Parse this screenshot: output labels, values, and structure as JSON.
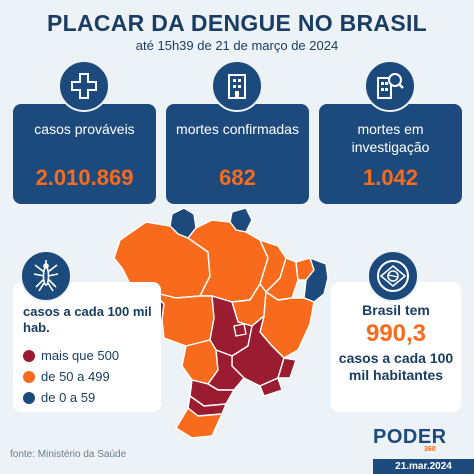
{
  "header": {
    "title": "PLACAR DA DENGUE NO BRASIL",
    "subtitle": "até 15h39 de 21 de março de 2024"
  },
  "cards": [
    {
      "label": "casos prováveis",
      "value": "2.010.869",
      "icon": "medical-cross-icon"
    },
    {
      "label": "mortes confirmadas",
      "value": "682",
      "icon": "building-icon"
    },
    {
      "label": "mortes em investigação",
      "value": "1.042",
      "icon": "building-search-icon"
    }
  ],
  "legend": {
    "icon": "mosquito-icon",
    "title": "casos a cada 100 mil hab.",
    "items": [
      {
        "label": "mais que 500",
        "color": "#9b1b30"
      },
      {
        "label": "de 50 a 499",
        "color": "#f86b1c"
      },
      {
        "label": "de 0 a 59",
        "color": "#1d4a7c"
      }
    ]
  },
  "summary": {
    "icon": "brazil-flag-icon",
    "line1": "Brasil tem",
    "value": "990,3",
    "line2": "casos a cada 100 mil habitantes"
  },
  "footer": {
    "source": "fonte: Ministério da Saúde",
    "brand": "PODER",
    "brand_number": "360",
    "date": "21.mar.2024"
  },
  "colors": {
    "navy": "#1d4a7c",
    "orange": "#f86b1c",
    "darkred": "#9b1b30",
    "background": "#edf2f7"
  }
}
